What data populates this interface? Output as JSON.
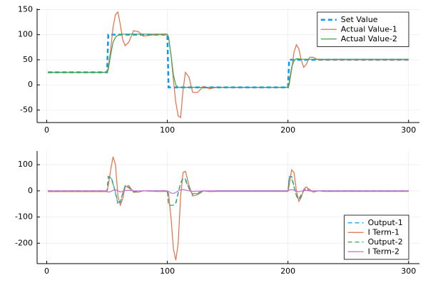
{
  "chart_data": [
    {
      "type": "line",
      "x": [
        1,
        50,
        51,
        53,
        55,
        57,
        59,
        61,
        63,
        65,
        68,
        72,
        76,
        80,
        90,
        100,
        101,
        103,
        105,
        107,
        109,
        111,
        113,
        115,
        118,
        121,
        125,
        130,
        135,
        140,
        150,
        200,
        201,
        203,
        205,
        207,
        209,
        211,
        213,
        215,
        218,
        221,
        225,
        230,
        240,
        300
      ],
      "series": [
        {
          "name": "Set Value",
          "color": "#009afa",
          "dashed": true,
          "width": 2.5,
          "values": [
            25,
            25,
            100,
            100,
            100,
            100,
            100,
            100,
            100,
            100,
            100,
            100,
            100,
            100,
            100,
            100,
            -5,
            -5,
            -5,
            -5,
            -5,
            -5,
            -5,
            -5,
            -5,
            -5,
            -5,
            -5,
            -5,
            -5,
            -5,
            -5,
            50,
            50,
            50,
            50,
            50,
            50,
            50,
            50,
            50,
            50,
            50,
            50,
            50,
            50
          ]
        },
        {
          "name": "Actual Value-1",
          "color": "#e26f46",
          "dashed": false,
          "width": 1.2,
          "values": [
            25,
            25,
            35,
            70,
            115,
            140,
            145,
            120,
            90,
            78,
            85,
            108,
            106,
            97,
            100,
            100,
            95,
            60,
            10,
            -35,
            -62,
            -65,
            -10,
            25,
            15,
            -15,
            -15,
            -3,
            -8,
            -5,
            -5,
            -5,
            0,
            30,
            65,
            80,
            72,
            50,
            35,
            40,
            55,
            55,
            50,
            50,
            50,
            50
          ]
        },
        {
          "name": "Actual Value-2",
          "color": "#3da44d",
          "dashed": false,
          "width": 1.2,
          "values": [
            25,
            25,
            30,
            60,
            85,
            95,
            99,
            100,
            101,
            101,
            101,
            101,
            101,
            101,
            101,
            101,
            95,
            60,
            20,
            0,
            -5,
            -5,
            -5,
            -5,
            -5,
            -5,
            -5,
            -5,
            -5,
            -5,
            -5,
            -5,
            5,
            35,
            48,
            52,
            52,
            51,
            51,
            51,
            51,
            51,
            51,
            51,
            51,
            51
          ]
        }
      ],
      "xlim": [
        -8,
        309
      ],
      "ylim": [
        -75,
        152
      ],
      "xticks": [
        0,
        100,
        200,
        300
      ],
      "yticks": [
        150,
        100,
        50,
        0,
        -50
      ],
      "grid": true,
      "legend": "top-right"
    },
    {
      "type": "line",
      "x": [
        1,
        50,
        51,
        53,
        55,
        57,
        59,
        61,
        63,
        65,
        68,
        72,
        76,
        80,
        90,
        100,
        101,
        103,
        105,
        107,
        109,
        111,
        113,
        115,
        118,
        121,
        125,
        130,
        135,
        140,
        150,
        200,
        201,
        203,
        205,
        207,
        209,
        211,
        213,
        215,
        218,
        221,
        225,
        230,
        240,
        300
      ],
      "series": [
        {
          "name": "Output-1",
          "color": "#009afa",
          "dashed": true,
          "width": 1.2,
          "values": [
            0,
            0,
            55,
            55,
            30,
            -10,
            -50,
            -45,
            -10,
            20,
            15,
            -5,
            -3,
            0,
            0,
            0,
            -55,
            -55,
            -55,
            -50,
            -10,
            30,
            50,
            45,
            10,
            -15,
            -10,
            0,
            -3,
            0,
            0,
            0,
            55,
            55,
            20,
            -20,
            -35,
            -20,
            0,
            10,
            0,
            -3,
            0,
            0,
            0,
            0
          ]
        },
        {
          "name": "I Term-1",
          "color": "#e26f46",
          "dashed": false,
          "width": 1.2,
          "values": [
            -3,
            -3,
            20,
            80,
            130,
            100,
            -20,
            -55,
            -30,
            15,
            20,
            -5,
            -5,
            0,
            -2,
            -2,
            -10,
            -100,
            -220,
            -265,
            -200,
            -20,
            70,
            75,
            20,
            -20,
            -15,
            0,
            -3,
            -2,
            -2,
            -2,
            20,
            80,
            70,
            0,
            -40,
            -25,
            5,
            15,
            5,
            -5,
            0,
            -2,
            -2,
            -2
          ]
        },
        {
          "name": "Output-2",
          "color": "#3da44d",
          "dashed": true,
          "width": 1.2,
          "values": [
            0,
            0,
            50,
            50,
            25,
            -5,
            -45,
            -40,
            -10,
            18,
            12,
            -4,
            -2,
            0,
            0,
            0,
            -55,
            -55,
            -55,
            -45,
            -5,
            30,
            45,
            40,
            8,
            -12,
            -8,
            0,
            -2,
            0,
            0,
            0,
            50,
            50,
            15,
            -18,
            -30,
            -15,
            0,
            8,
            0,
            -2,
            0,
            0,
            0,
            0
          ]
        },
        {
          "name": "I Term-2",
          "color": "#c271d2",
          "dashed": false,
          "width": 1.2,
          "values": [
            0,
            0,
            -5,
            -3,
            2,
            4,
            0,
            -4,
            -2,
            1,
            2,
            0,
            0,
            0,
            0,
            0,
            -3,
            -8,
            -10,
            -6,
            0,
            4,
            5,
            3,
            0,
            -2,
            -1,
            0,
            0,
            0,
            0,
            0,
            3,
            5,
            3,
            -1,
            -3,
            -1,
            1,
            1,
            0,
            0,
            0,
            0,
            0,
            0
          ]
        }
      ],
      "xlim": [
        -8,
        309
      ],
      "ylim": [
        -278,
        152
      ],
      "xticks": [
        0,
        100,
        200,
        300
      ],
      "yticks": [
        100,
        0,
        -100,
        -200
      ],
      "grid": true,
      "legend": "bottom-right"
    }
  ]
}
